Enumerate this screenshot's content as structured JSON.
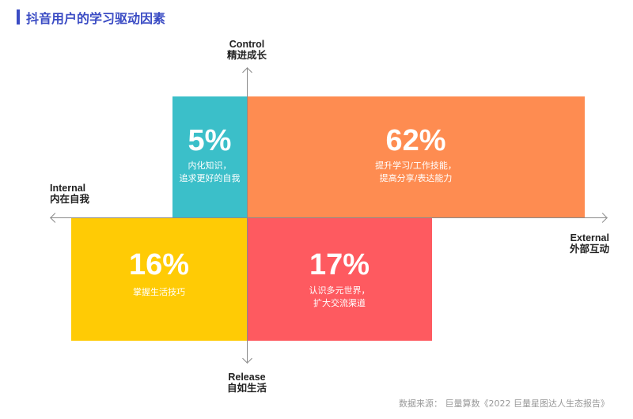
{
  "title": "抖音用户的学习驱动因素",
  "axes": {
    "top": {
      "en": "Control",
      "zh": "精进成长"
    },
    "bottom": {
      "en": "Release",
      "zh": "自如生活"
    },
    "left": {
      "en": "Internal",
      "zh": "内在自我"
    },
    "right": {
      "en": "External",
      "zh": "外部互动"
    }
  },
  "quadrants": {
    "control_internal": {
      "percent": "5%",
      "lines": [
        "内化知识，",
        "追求更好的自我"
      ],
      "color": "#3bbfc9"
    },
    "control_external": {
      "percent": "62%",
      "lines": [
        "提升学习/工作技能，",
        "提高分享/表达能力"
      ],
      "color": "#fe8c51"
    },
    "release_internal": {
      "percent": "16%",
      "lines": [
        "掌握生活技巧"
      ],
      "color": "#ffcb05"
    },
    "release_external": {
      "percent": "17%",
      "lines": [
        "认识多元世界，",
        "扩大交流渠道"
      ],
      "color": "#fe5a60"
    }
  },
  "source": "数据来源： 巨量算数《2022 巨量星图达人生态报告》"
}
